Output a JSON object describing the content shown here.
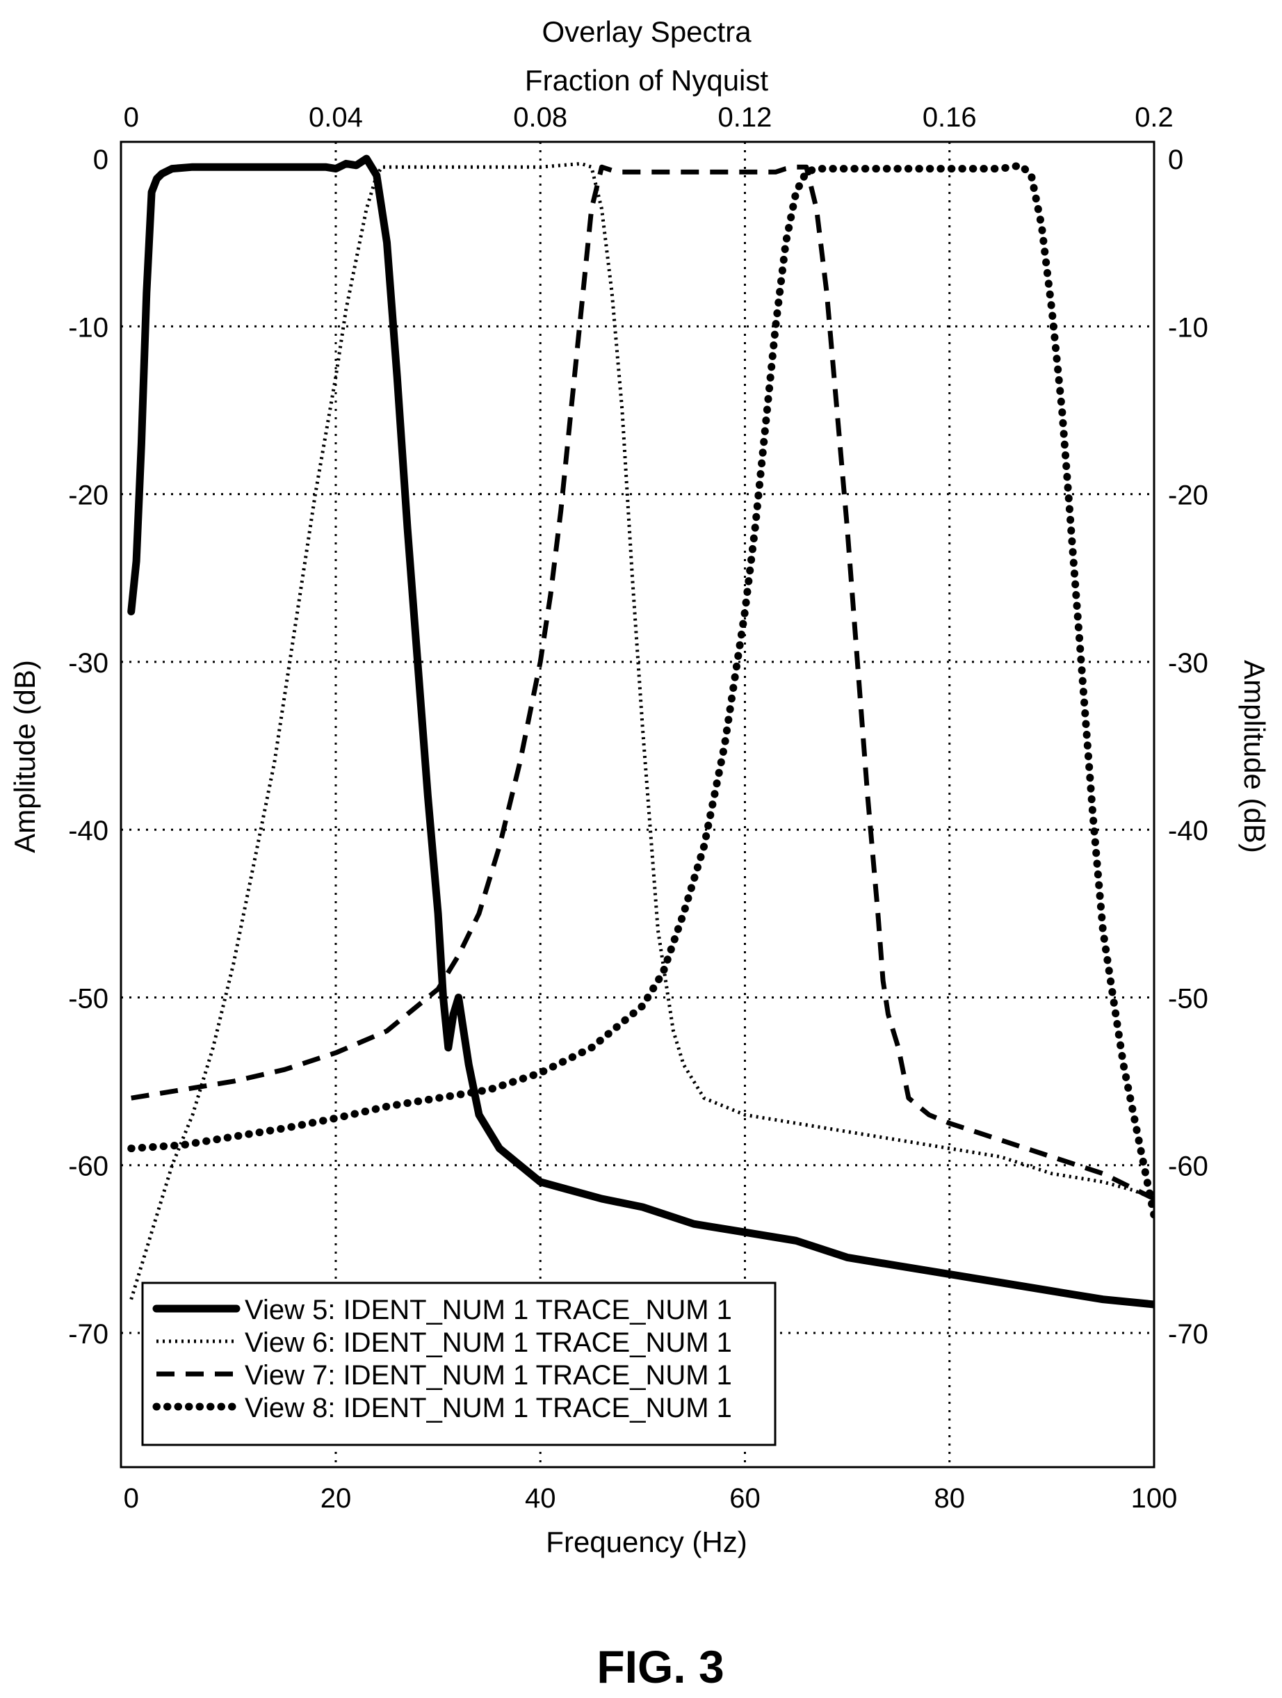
{
  "figure_label": "FIG. 3",
  "chart_data": {
    "type": "line",
    "title": "Overlay Spectra",
    "top_axis_label": "Fraction of Nyquist",
    "top_ticks": [
      "0",
      "0.04",
      "0.08",
      "0.12",
      "0.16",
      "0.2"
    ],
    "top_tick_values": [
      0,
      0.04,
      0.08,
      0.12,
      0.16,
      0.2
    ],
    "xlabel": "Frequency (Hz)",
    "x_ticks": [
      "0",
      "20",
      "40",
      "60",
      "80",
      "100"
    ],
    "x_tick_values": [
      0,
      20,
      40,
      60,
      80,
      100
    ],
    "ylabel": "Amplitude (dB)",
    "y2label": "Amplitude (dB)",
    "y_ticks": [
      "0",
      "-10",
      "-20",
      "-30",
      "-40",
      "-50",
      "-60",
      "-70"
    ],
    "y_tick_values": [
      0,
      -10,
      -20,
      -30,
      -40,
      -50,
      -60,
      -70
    ],
    "xlim": [
      -1,
      100
    ],
    "ylim": [
      -78,
      1
    ],
    "grid": true,
    "legend_position": "bottom-left",
    "colors": {
      "line": "#000000",
      "background": "#ffffff",
      "grid": "#000000"
    },
    "series": [
      {
        "name": "View 5: IDENT_NUM 1 TRACE_NUM 1",
        "style": "solid",
        "x": [
          0,
          0.5,
          1,
          1.5,
          2,
          2.5,
          3,
          4,
          6,
          10,
          15,
          19,
          20,
          21,
          22,
          23,
          24,
          25,
          26,
          27,
          28,
          29,
          30,
          30.5,
          31,
          31.5,
          32,
          33,
          34,
          35,
          36,
          38,
          40,
          43,
          46,
          50,
          55,
          60,
          65,
          70,
          75,
          80,
          85,
          90,
          95,
          100
        ],
        "y": [
          -27,
          -24,
          -17,
          -8,
          -2,
          -1.2,
          -0.9,
          -0.6,
          -0.5,
          -0.5,
          -0.5,
          -0.5,
          -0.6,
          -0.3,
          -0.4,
          0,
          -1,
          -5,
          -13,
          -22,
          -30,
          -38,
          -45,
          -50,
          -53,
          -51,
          -50,
          -54,
          -57,
          -58,
          -59,
          -60,
          -61,
          -61.5,
          -62,
          -62.5,
          -63.5,
          -64,
          -64.5,
          -65.5,
          -66,
          -66.5,
          -67,
          -67.5,
          -68,
          -68.3
        ]
      },
      {
        "name": "View 6: IDENT_NUM 1 TRACE_NUM 1",
        "style": "dotted",
        "x": [
          0,
          2,
          4,
          6,
          8,
          10,
          12,
          14,
          16,
          18,
          20,
          21,
          22,
          23,
          24,
          24.5,
          25,
          26,
          30,
          40,
          42,
          44,
          45,
          46,
          47,
          48,
          49,
          50,
          51,
          51.5,
          52,
          52.5,
          53,
          54,
          55,
          56,
          58,
          60,
          65,
          70,
          75,
          80,
          85,
          90,
          95,
          98,
          100
        ],
        "y": [
          -68,
          -64,
          -60,
          -57,
          -53,
          -48,
          -42,
          -36,
          -28,
          -20,
          -13,
          -9,
          -6,
          -3,
          -1,
          -0.5,
          -0.5,
          -0.5,
          -0.5,
          -0.5,
          -0.4,
          -0.3,
          -0.5,
          -3,
          -8,
          -15,
          -25,
          -34,
          -42,
          -46,
          -48,
          -50,
          -52,
          -54,
          -55,
          -56,
          -56.5,
          -57,
          -57.5,
          -58,
          -58.5,
          -59,
          -59.5,
          -60.5,
          -61,
          -61.5,
          -62
        ]
      },
      {
        "name": "View 7: IDENT_NUM 1 TRACE_NUM 1",
        "style": "dashed",
        "x": [
          0,
          5,
          10,
          15,
          20,
          25,
          28,
          30,
          32,
          34,
          36,
          38,
          40,
          41,
          42,
          43,
          44,
          45,
          46,
          47,
          48,
          50,
          55,
          60,
          63,
          64,
          65,
          66,
          67,
          68,
          69,
          70,
          71,
          72,
          73,
          73.5,
          74,
          75,
          76,
          78,
          80,
          85,
          90,
          95,
          100
        ],
        "y": [
          -56,
          -55.5,
          -55,
          -54.3,
          -53.3,
          -52,
          -50.5,
          -49.5,
          -47.5,
          -45,
          -41,
          -36,
          -30,
          -26,
          -21,
          -15,
          -9,
          -3,
          -0.5,
          -0.7,
          -0.8,
          -0.8,
          -0.8,
          -0.8,
          -0.8,
          -0.6,
          -0.5,
          -0.5,
          -3,
          -8,
          -15,
          -22,
          -30,
          -38,
          -45,
          -49,
          -51,
          -53,
          -56,
          -57,
          -57.5,
          -58.5,
          -59.5,
          -60.5,
          -62
        ]
      },
      {
        "name": "View 8: IDENT_NUM 1 TRACE_NUM 1",
        "style": "heavy-dotted",
        "x": [
          0,
          5,
          10,
          15,
          20,
          25,
          30,
          35,
          40,
          45,
          48,
          50,
          52,
          54,
          56,
          58,
          60,
          61,
          62,
          63,
          64,
          65,
          66,
          67,
          70,
          75,
          80,
          85,
          86,
          87,
          88,
          89,
          90,
          91,
          92,
          93,
          94,
          95,
          96,
          97,
          98,
          99,
          100
        ],
        "y": [
          -59,
          -58.8,
          -58.3,
          -57.8,
          -57.2,
          -56.5,
          -56,
          -55.5,
          -54.5,
          -53,
          -51.5,
          -50.5,
          -48.5,
          -45,
          -41,
          -35,
          -27,
          -22,
          -16,
          -10,
          -5,
          -2,
          -0.8,
          -0.6,
          -0.6,
          -0.6,
          -0.6,
          -0.6,
          -0.5,
          -0.4,
          -1,
          -4,
          -9,
          -15,
          -23,
          -31,
          -39,
          -46,
          -50,
          -54,
          -57,
          -60,
          -63
        ]
      }
    ]
  }
}
